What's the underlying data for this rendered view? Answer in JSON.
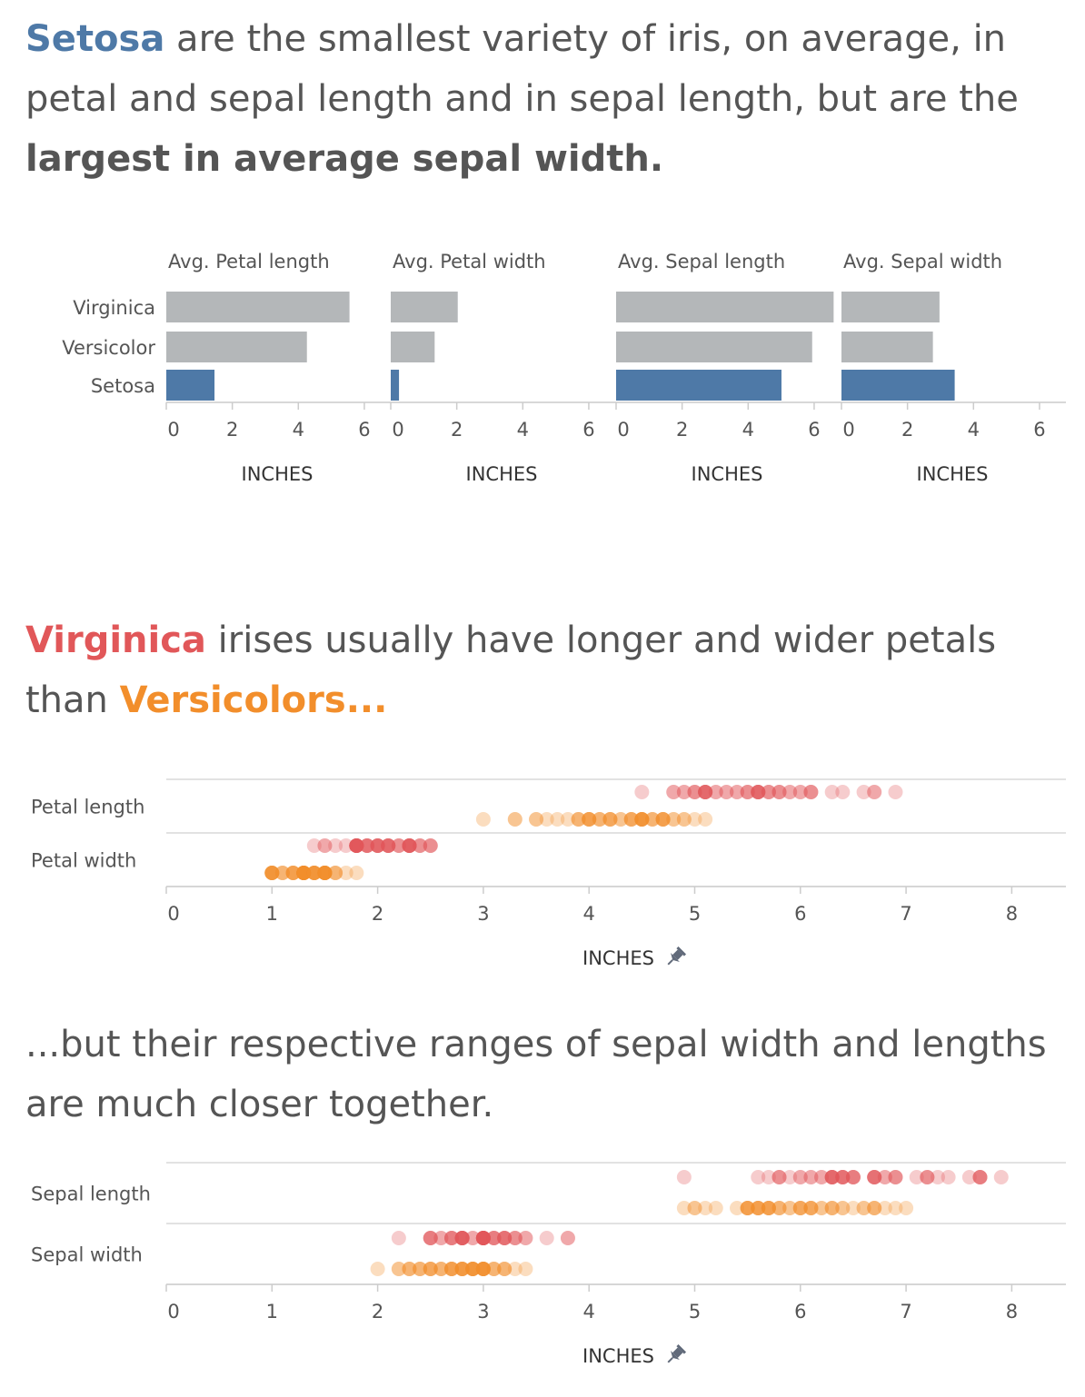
{
  "headline_1": {
    "setosa": "Setosa",
    "text_a": " are the smallest variety of iris, on average, in petal and sepal length and in sepal length, but are the ",
    "emphasis": "largest in average sepal width.",
    "setosa_color": "#4e79a7"
  },
  "headline_2": {
    "virginica": "Virginica",
    "text_a": " irises usually have longer and wider petals than ",
    "versicolor": "Versicolors...",
    "virginica_color": "#e15759",
    "versicolor_color": "#f28e2b"
  },
  "headline_3": {
    "text": "...but their respective ranges of sepal width and lengths are much closer together."
  },
  "chart_data": [
    {
      "type": "bar",
      "orientation": "horizontal",
      "categories": [
        "Virginica",
        "Versicolor",
        "Setosa"
      ],
      "highlight_category": "Setosa",
      "highlight_color": "#4e79a7",
      "base_color": "#b4b7b9",
      "xlim": [
        0,
        6.8
      ],
      "xticks": [
        0,
        2,
        4,
        6
      ],
      "xlabel": "INCHES",
      "panels": [
        {
          "title": "Avg. Petal length",
          "values": [
            5.55,
            4.26,
            1.46
          ]
        },
        {
          "title": "Avg. Petal width",
          "values": [
            2.03,
            1.33,
            0.25
          ]
        },
        {
          "title": "Avg. Sepal length",
          "values": [
            6.59,
            5.94,
            5.01
          ]
        },
        {
          "title": "Avg. Sepal width",
          "values": [
            2.97,
            2.77,
            3.43
          ]
        }
      ]
    },
    {
      "type": "scatter",
      "subtype": "strip",
      "xlim": [
        0,
        8.5
      ],
      "xticks": [
        0,
        1,
        2,
        3,
        4,
        5,
        6,
        7,
        8
      ],
      "xlabel": "INCHES",
      "rows": [
        {
          "label": "Petal length",
          "series": [
            {
              "species": "Virginica",
              "color": "#e15759",
              "values": [
                4.5,
                4.8,
                4.8,
                4.9,
                4.9,
                5.0,
                5.0,
                5.0,
                5.1,
                5.1,
                5.1,
                5.1,
                5.1,
                5.1,
                5.2,
                5.2,
                5.3,
                5.3,
                5.4,
                5.4,
                5.5,
                5.5,
                5.5,
                5.6,
                5.6,
                5.6,
                5.6,
                5.6,
                5.6,
                5.7,
                5.7,
                5.7,
                5.8,
                5.8,
                5.8,
                5.9,
                5.9,
                6.0,
                6.0,
                6.1,
                6.1,
                6.1,
                6.3,
                6.4,
                6.6,
                6.7,
                6.7,
                6.9
              ]
            },
            {
              "species": "Versicolor",
              "color": "#f28e2b",
              "values": [
                3.0,
                3.3,
                3.3,
                3.5,
                3.5,
                3.6,
                3.7,
                3.8,
                3.9,
                3.9,
                3.9,
                4.0,
                4.0,
                4.0,
                4.0,
                4.0,
                4.1,
                4.1,
                4.1,
                4.2,
                4.2,
                4.2,
                4.2,
                4.3,
                4.3,
                4.4,
                4.4,
                4.4,
                4.4,
                4.5,
                4.5,
                4.5,
                4.5,
                4.5,
                4.5,
                4.5,
                4.6,
                4.6,
                4.6,
                4.7,
                4.7,
                4.7,
                4.7,
                4.7,
                4.8,
                4.8,
                4.9,
                4.9,
                5.0,
                5.1
              ]
            }
          ]
        },
        {
          "label": "Petal width",
          "series": [
            {
              "species": "Virginica",
              "color": "#e15759",
              "values": [
                1.4,
                1.5,
                1.5,
                1.6,
                1.7,
                1.8,
                1.8,
                1.8,
                1.8,
                1.8,
                1.8,
                1.8,
                1.8,
                1.8,
                1.8,
                1.8,
                1.9,
                1.9,
                1.9,
                1.9,
                1.9,
                2.0,
                2.0,
                2.0,
                2.0,
                2.0,
                2.0,
                2.1,
                2.1,
                2.1,
                2.1,
                2.1,
                2.1,
                2.2,
                2.2,
                2.2,
                2.3,
                2.3,
                2.3,
                2.3,
                2.3,
                2.3,
                2.3,
                2.3,
                2.4,
                2.4,
                2.4,
                2.5,
                2.5,
                2.5
              ]
            },
            {
              "species": "Versicolor",
              "color": "#f28e2b",
              "values": [
                1.0,
                1.0,
                1.0,
                1.0,
                1.0,
                1.0,
                1.0,
                1.1,
                1.1,
                1.1,
                1.2,
                1.2,
                1.2,
                1.2,
                1.2,
                1.3,
                1.3,
                1.3,
                1.3,
                1.3,
                1.3,
                1.3,
                1.3,
                1.3,
                1.3,
                1.3,
                1.3,
                1.3,
                1.4,
                1.4,
                1.4,
                1.4,
                1.4,
                1.4,
                1.4,
                1.5,
                1.5,
                1.5,
                1.5,
                1.5,
                1.5,
                1.5,
                1.5,
                1.5,
                1.5,
                1.6,
                1.6,
                1.6,
                1.7,
                1.8
              ]
            }
          ]
        }
      ]
    },
    {
      "type": "scatter",
      "subtype": "strip",
      "xlim": [
        0,
        8.5
      ],
      "xticks": [
        0,
        1,
        2,
        3,
        4,
        5,
        6,
        7,
        8
      ],
      "xlabel": "INCHES",
      "rows": [
        {
          "label": "Sepal length",
          "series": [
            {
              "species": "Virginica",
              "color": "#e15759",
              "values": [
                4.9,
                5.6,
                5.7,
                5.8,
                5.8,
                5.8,
                5.9,
                6.0,
                6.0,
                6.1,
                6.1,
                6.2,
                6.2,
                6.3,
                6.3,
                6.3,
                6.3,
                6.3,
                6.3,
                6.4,
                6.4,
                6.4,
                6.4,
                6.4,
                6.5,
                6.5,
                6.5,
                6.5,
                6.7,
                6.7,
                6.7,
                6.7,
                6.7,
                6.8,
                6.8,
                6.9,
                6.9,
                6.9,
                7.1,
                7.2,
                7.2,
                7.2,
                7.3,
                7.4,
                7.6,
                7.7,
                7.7,
                7.7,
                7.7,
                7.9
              ]
            },
            {
              "species": "Versicolor",
              "color": "#f28e2b",
              "values": [
                4.9,
                5.0,
                5.0,
                5.1,
                5.2,
                5.4,
                5.5,
                5.5,
                5.5,
                5.5,
                5.5,
                5.6,
                5.6,
                5.6,
                5.6,
                5.6,
                5.7,
                5.7,
                5.7,
                5.7,
                5.7,
                5.8,
                5.8,
                5.8,
                5.9,
                5.9,
                6.0,
                6.0,
                6.0,
                6.0,
                6.1,
                6.1,
                6.1,
                6.1,
                6.2,
                6.2,
                6.3,
                6.3,
                6.3,
                6.4,
                6.4,
                6.5,
                6.6,
                6.6,
                6.7,
                6.7,
                6.7,
                6.8,
                6.9,
                7.0
              ]
            }
          ]
        },
        {
          "label": "Sepal width",
          "series": [
            {
              "species": "Virginica",
              "color": "#e15759",
              "values": [
                2.2,
                2.5,
                2.5,
                2.5,
                2.5,
                2.6,
                2.6,
                2.7,
                2.7,
                2.7,
                2.7,
                2.8,
                2.8,
                2.8,
                2.8,
                2.8,
                2.8,
                2.8,
                2.8,
                2.9,
                2.9,
                3.0,
                3.0,
                3.0,
                3.0,
                3.0,
                3.0,
                3.0,
                3.0,
                3.0,
                3.0,
                3.0,
                3.0,
                3.1,
                3.1,
                3.1,
                3.1,
                3.2,
                3.2,
                3.2,
                3.2,
                3.2,
                3.3,
                3.3,
                3.3,
                3.4,
                3.4,
                3.6,
                3.8,
                3.8
              ]
            },
            {
              "species": "Versicolor",
              "color": "#f28e2b",
              "values": [
                2.0,
                2.2,
                2.2,
                2.3,
                2.3,
                2.3,
                2.4,
                2.4,
                2.4,
                2.5,
                2.5,
                2.5,
                2.5,
                2.6,
                2.6,
                2.6,
                2.7,
                2.7,
                2.7,
                2.7,
                2.7,
                2.8,
                2.8,
                2.8,
                2.8,
                2.8,
                2.8,
                2.9,
                2.9,
                2.9,
                2.9,
                2.9,
                2.9,
                2.9,
                3.0,
                3.0,
                3.0,
                3.0,
                3.0,
                3.0,
                3.0,
                3.0,
                3.1,
                3.1,
                3.1,
                3.2,
                3.2,
                3.2,
                3.3,
                3.4
              ]
            }
          ]
        }
      ]
    }
  ]
}
